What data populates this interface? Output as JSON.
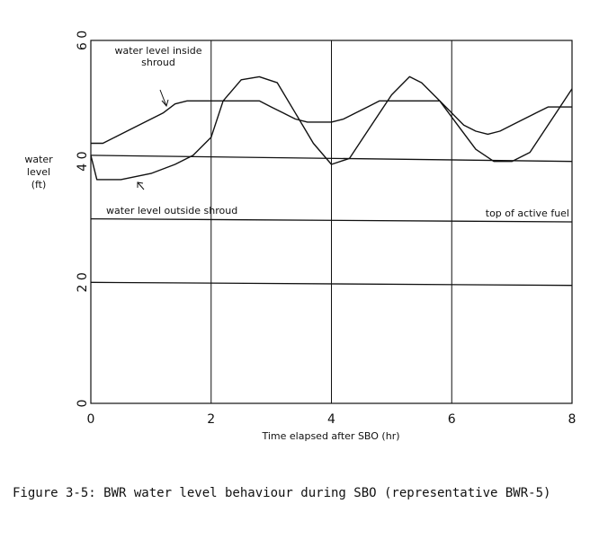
{
  "chart_data": {
    "type": "line",
    "xlabel": "Time elapsed after SBO (hr)",
    "ylabel_lines": [
      "water",
      "level",
      "(ft)"
    ],
    "xlim": [
      0,
      8
    ],
    "ylim": [
      0,
      60
    ],
    "xticks": [
      0,
      2,
      4,
      6,
      8
    ],
    "yticks": [
      0,
      20,
      40,
      60
    ],
    "ytick_labels": [
      "0",
      "2 0",
      "4 0",
      "6 0"
    ],
    "grid": "vertical lines at 2, 4, 6 hr",
    "series": [
      {
        "name": "water level inside shroud",
        "x": [
          0,
          0.2,
          0.4,
          0.6,
          0.8,
          1.0,
          1.2,
          1.4,
          1.6,
          1.8,
          2.0,
          2.2,
          2.4,
          2.6,
          2.8,
          3.0,
          3.2,
          3.4,
          3.6,
          3.8,
          4.0,
          4.2,
          4.4,
          4.6,
          4.8,
          5.0,
          5.2,
          5.4,
          5.6,
          5.8,
          6.0,
          6.2,
          6.4,
          6.6,
          6.8,
          7.0,
          7.2,
          7.4,
          7.6,
          7.8,
          8.0
        ],
        "values": [
          43,
          43,
          44,
          45,
          46,
          47,
          48,
          49.5,
          50,
          50,
          50,
          50,
          50,
          50,
          50,
          49,
          48,
          47,
          46.5,
          46.5,
          46.5,
          47,
          48,
          49,
          50,
          50,
          50,
          50,
          50,
          50,
          48,
          46,
          45,
          44.5,
          45,
          46,
          47,
          48,
          49,
          49,
          49
        ]
      },
      {
        "name": "water level outside shroud",
        "x": [
          0,
          0.1,
          0.5,
          1.0,
          1.4,
          1.7,
          2.0,
          2.2,
          2.5,
          2.8,
          3.1,
          3.4,
          3.7,
          4.0,
          4.3,
          4.6,
          5.0,
          5.3,
          5.5,
          5.8,
          6.1,
          6.4,
          6.7,
          7.0,
          7.3,
          7.6,
          8.0
        ],
        "values": [
          41,
          37,
          37,
          38,
          39.5,
          41,
          44,
          50,
          53.5,
          54,
          53,
          48,
          43,
          39.5,
          40.5,
          45,
          51,
          54,
          53,
          50,
          46,
          42,
          40,
          40,
          41.5,
          46,
          52
        ]
      },
      {
        "name": "top of active fuel",
        "x": [
          0,
          8
        ],
        "values": [
          30.5,
          30
        ]
      },
      {
        "name": "",
        "x": [
          0,
          8
        ],
        "values": [
          41,
          40
        ]
      },
      {
        "name": "",
        "x": [
          0,
          8
        ],
        "values": [
          20,
          19.5
        ]
      }
    ],
    "annotations": [
      "water level inside shroud",
      "water level outside shroud",
      "top of active fuel"
    ]
  },
  "annotations": {
    "inside_line1": "water level inside",
    "inside_line2": "shroud",
    "outside": "water level outside shroud",
    "fuel": "top of active fuel"
  },
  "caption": "Figure 3-5: BWR water level behaviour during SBO (representative BWR-5)"
}
